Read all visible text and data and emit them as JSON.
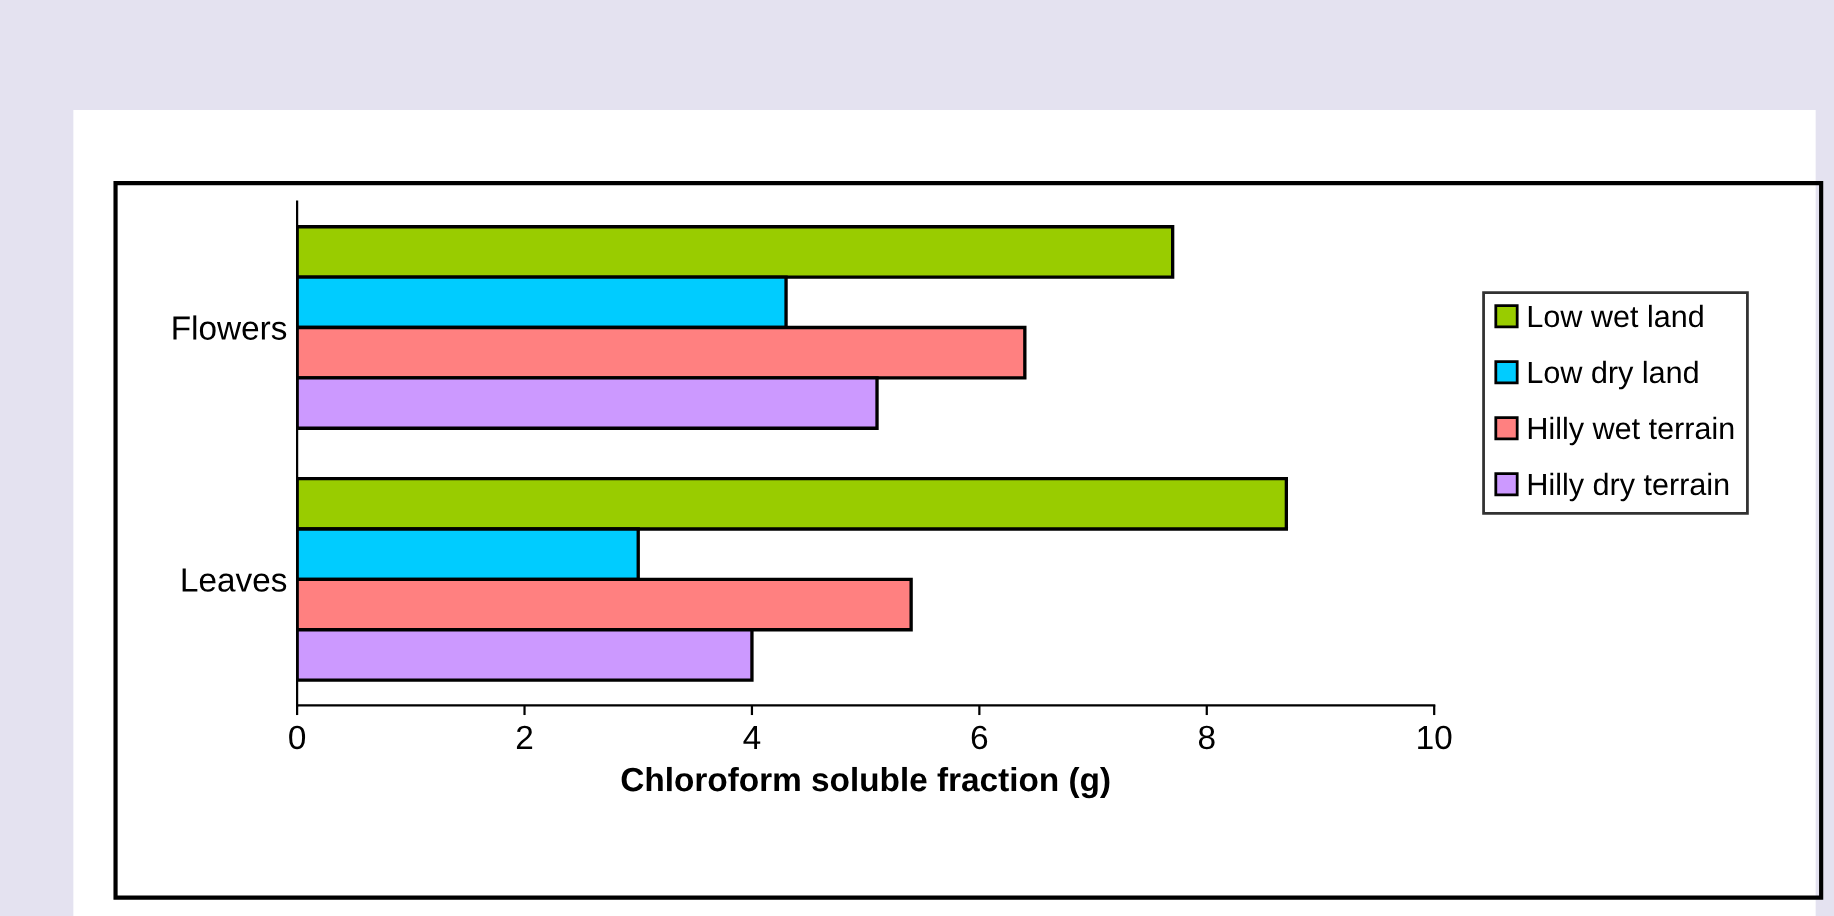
{
  "chart_data": {
    "type": "bar",
    "orientation": "horizontal",
    "xlabel": "Chloroform soluble fraction (g)",
    "categories": [
      "Flowers",
      "Leaves"
    ],
    "series": [
      {
        "name": "Low wet land",
        "color": "#99cc00",
        "values": [
          7.7,
          8.7
        ]
      },
      {
        "name": "Low dry land",
        "color": "#00ccff",
        "values": [
          4.3,
          3.0
        ]
      },
      {
        "name": "Hilly wet terrain",
        "color": "#ff8080",
        "values": [
          6.4,
          5.4
        ]
      },
      {
        "name": "Hilly dry terrain",
        "color": "#cc99ff",
        "values": [
          5.1,
          4.0
        ]
      }
    ],
    "xlim": [
      0,
      10
    ],
    "xticks": [
      0,
      2,
      4,
      6,
      8,
      10
    ],
    "grid": false,
    "legend": "right"
  }
}
